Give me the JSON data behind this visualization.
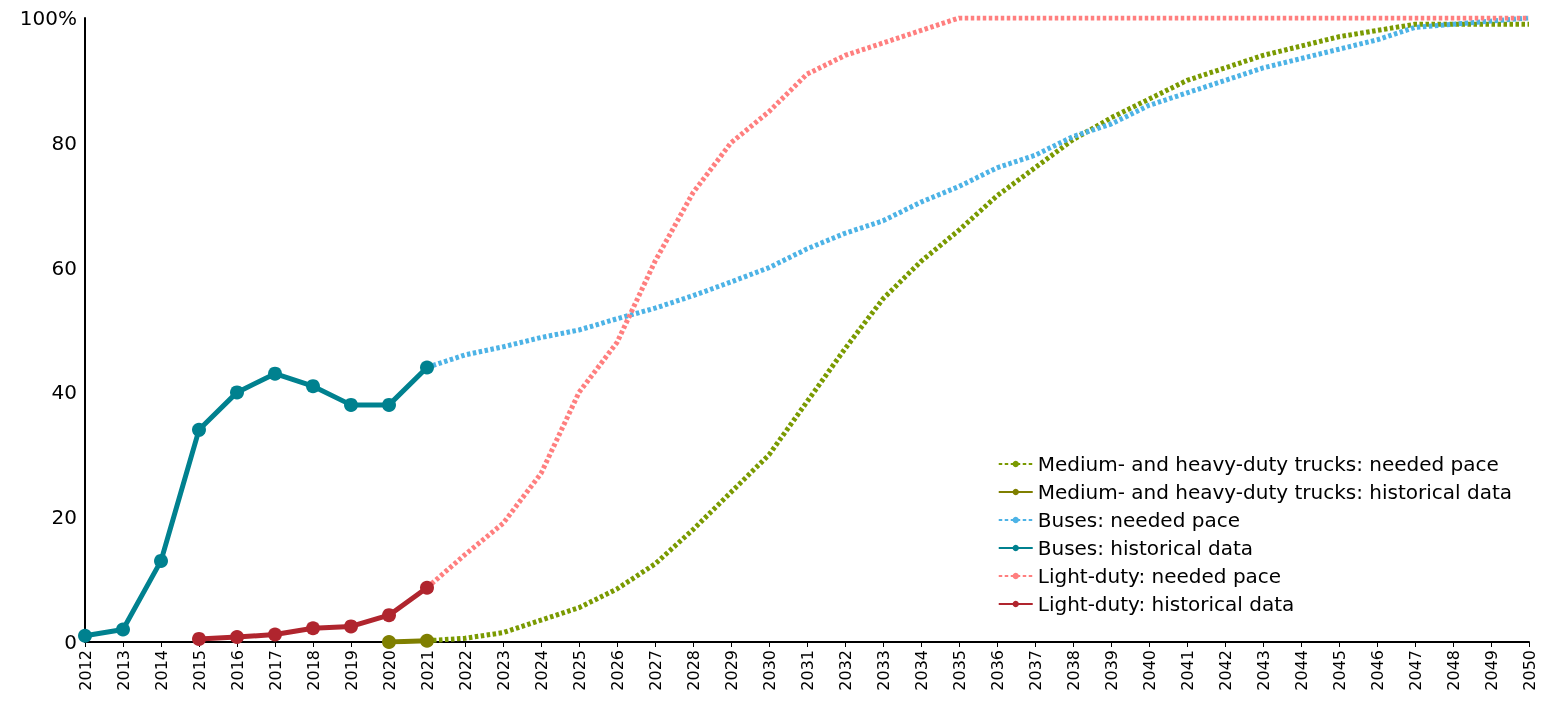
{
  "chart_data": {
    "type": "line",
    "categories": [
      "2012",
      "2013",
      "2014",
      "2015",
      "2016",
      "2017",
      "2018",
      "2019",
      "2020",
      "2021",
      "2022",
      "2023",
      "2024",
      "2025",
      "2026",
      "2027",
      "2028",
      "2029",
      "2030",
      "2031",
      "2032",
      "2033",
      "2034",
      "2035",
      "2036",
      "2037",
      "2038",
      "2039",
      "2040",
      "2041",
      "2042",
      "2043",
      "2044",
      "2045",
      "2046",
      "2047",
      "2048",
      "2049",
      "2050"
    ],
    "ylim": [
      0,
      100
    ],
    "yticks": [
      0,
      20,
      40,
      60,
      80,
      {
        "value": 100,
        "label": "100%"
      }
    ],
    "grid": false,
    "legend": "bottom right",
    "series": [
      {
        "name": "Medium- and heavy-duty trucks: needed pace",
        "color": "#7a9a01",
        "line_style": "dashed",
        "marker": "none",
        "values": [
          null,
          null,
          null,
          null,
          null,
          null,
          null,
          null,
          null,
          0.2,
          0.6,
          1.5,
          3.5,
          5.5,
          8.5,
          12.5,
          18,
          24,
          30,
          38.5,
          47,
          55,
          61,
          66,
          71.5,
          76,
          80.5,
          84,
          87,
          90,
          92,
          94,
          95.5,
          97,
          98,
          99,
          99,
          99,
          99
        ]
      },
      {
        "name": "Medium- and heavy-duty trucks: historical data",
        "color": "#7f7f00",
        "line_style": "solid",
        "marker": "circle",
        "values": [
          null,
          null,
          null,
          null,
          null,
          null,
          null,
          null,
          0,
          0.2,
          null,
          null,
          null,
          null,
          null,
          null,
          null,
          null,
          null,
          null,
          null,
          null,
          null,
          null,
          null,
          null,
          null,
          null,
          null,
          null,
          null,
          null,
          null,
          null,
          null,
          null,
          null,
          null,
          null
        ]
      },
      {
        "name": "Buses: needed pace",
        "color": "#4db3e6",
        "line_style": "dashed",
        "marker": "none",
        "values": [
          null,
          null,
          null,
          null,
          null,
          null,
          null,
          null,
          null,
          44,
          46,
          47.3,
          48.8,
          50,
          51.8,
          53.5,
          55.5,
          57.7,
          60,
          63,
          65.5,
          67.5,
          70.5,
          73,
          76,
          78,
          81,
          83,
          86,
          88,
          90,
          92,
          93.5,
          95,
          96.5,
          98.5,
          99,
          99.5,
          100
        ]
      },
      {
        "name": "Buses: historical data",
        "color": "#00818f",
        "line_style": "solid",
        "marker": "circle",
        "values": [
          1,
          2,
          13,
          34,
          40,
          43,
          41,
          38,
          38,
          44,
          null,
          null,
          null,
          null,
          null,
          null,
          null,
          null,
          null,
          null,
          null,
          null,
          null,
          null,
          null,
          null,
          null,
          null,
          null,
          null,
          null,
          null,
          null,
          null,
          null,
          null,
          null,
          null,
          null
        ]
      },
      {
        "name": "Light-duty: needed pace",
        "color": "#ff7f7f",
        "line_style": "dashed",
        "marker": "none",
        "values": [
          null,
          null,
          null,
          null,
          null,
          null,
          null,
          null,
          null,
          8.7,
          14,
          19,
          27,
          40,
          48,
          61,
          72,
          80,
          85,
          91,
          94,
          96,
          98,
          100,
          100,
          100,
          100,
          100,
          100,
          100,
          100,
          100,
          100,
          100,
          100,
          100,
          100,
          100,
          100
        ]
      },
      {
        "name": "Light-duty: historical data",
        "color": "#b0252e",
        "line_style": "solid",
        "marker": "circle",
        "values": [
          null,
          null,
          null,
          0.5,
          0.8,
          1.2,
          2.2,
          2.5,
          4.3,
          8.7,
          null,
          null,
          null,
          null,
          null,
          null,
          null,
          null,
          null,
          null,
          null,
          null,
          null,
          null,
          null,
          null,
          null,
          null,
          null,
          null,
          null,
          null,
          null,
          null,
          null,
          null,
          null,
          null,
          null
        ]
      }
    ]
  }
}
